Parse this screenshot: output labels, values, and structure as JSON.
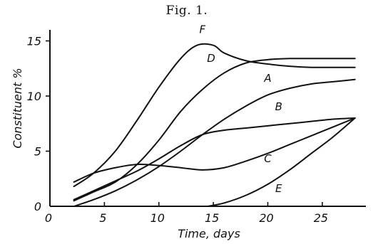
{
  "chart_data": {
    "type": "line",
    "title": "Fig. 1.",
    "xlabel": "Time, days",
    "ylabel": "Constituent %",
    "xlim": [
      0,
      29
    ],
    "ylim": [
      0,
      16
    ],
    "x_ticks": [
      0,
      5,
      10,
      15,
      20,
      25
    ],
    "y_ticks": [
      0,
      5,
      10,
      15
    ],
    "x_tick_labels": [
      "0",
      "5",
      "10",
      "15",
      "20",
      "25"
    ],
    "y_tick_labels": [
      "0",
      "5",
      "10",
      "15"
    ],
    "grid": false,
    "series": [
      {
        "name": "A",
        "x": [
          2.2,
          4,
          6,
          8,
          10,
          12,
          14,
          16,
          18,
          20,
          22,
          24,
          26,
          28
        ],
        "y": [
          0.0,
          0.6,
          1.4,
          2.4,
          3.6,
          5.0,
          6.5,
          7.9,
          9.1,
          10.1,
          10.7,
          11.1,
          11.3,
          11.5
        ],
        "label_at": [
          20.0,
          11.3
        ]
      },
      {
        "name": "B",
        "x": [
          2.2,
          4,
          6,
          8,
          10,
          12,
          14,
          16,
          18,
          20,
          22,
          24,
          26,
          28
        ],
        "y": [
          0.6,
          1.4,
          2.3,
          3.2,
          4.3,
          5.5,
          6.5,
          6.9,
          7.1,
          7.3,
          7.5,
          7.7,
          7.9,
          8.0
        ],
        "label_at": [
          21.0,
          8.7
        ]
      },
      {
        "name": "C",
        "x": [
          2.2,
          4,
          6,
          8,
          10,
          12,
          14,
          16,
          18,
          20,
          22,
          24,
          26,
          28
        ],
        "y": [
          2.2,
          3.0,
          3.5,
          3.8,
          3.7,
          3.5,
          3.3,
          3.5,
          4.1,
          4.8,
          5.6,
          6.4,
          7.2,
          8.0
        ],
        "label_at": [
          20.0,
          4.0
        ]
      },
      {
        "name": "D",
        "x": [
          2.2,
          4,
          6,
          8,
          10,
          12,
          14,
          16,
          18,
          20,
          22,
          24,
          26,
          28
        ],
        "y": [
          0.5,
          1.3,
          2.2,
          3.8,
          6.0,
          8.6,
          10.6,
          12.1,
          13.0,
          13.3,
          13.4,
          13.4,
          13.4,
          13.4
        ],
        "label_at": [
          14.8,
          13.1
        ]
      },
      {
        "name": "E",
        "x": [
          14.5,
          16,
          18,
          20,
          22,
          24,
          26,
          28
        ],
        "y": [
          0.0,
          0.3,
          1.0,
          2.0,
          3.3,
          4.8,
          6.3,
          8.0
        ],
        "label_at": [
          21.0,
          1.3
        ]
      },
      {
        "name": "F",
        "x": [
          2.2,
          4,
          6,
          8,
          10,
          12,
          13.5,
          15,
          16,
          18,
          20,
          22,
          24,
          26,
          28
        ],
        "y": [
          1.8,
          3.0,
          5.0,
          7.8,
          10.8,
          13.4,
          14.6,
          14.6,
          13.9,
          13.2,
          12.9,
          12.7,
          12.6,
          12.6,
          12.6
        ],
        "label_at": [
          14.0,
          15.7
        ]
      }
    ]
  }
}
